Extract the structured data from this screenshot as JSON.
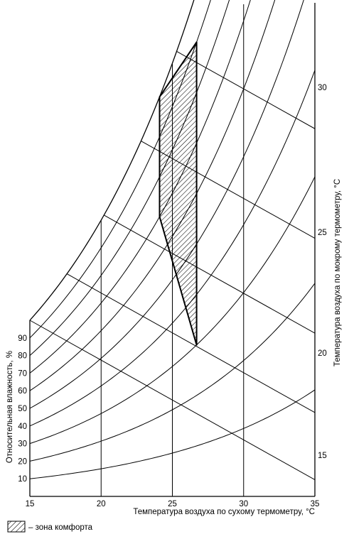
{
  "chart_data": {
    "type": "psychrometric",
    "title": "",
    "xlabel": "Температура воздуха по сухому термометру, °C",
    "ylabel_left": "Относительная влажность, %",
    "ylabel_right": "Температура воздуха по мокрому термометру, °C",
    "xlim": [
      15,
      35
    ],
    "x_ticks": [
      "15",
      "20",
      "25",
      "30",
      "35"
    ],
    "rh_curves": [
      10,
      20,
      30,
      40,
      50,
      60,
      70,
      80,
      90,
      100
    ],
    "rh_labels": [
      "90",
      "80",
      "70",
      "60",
      "50",
      "40",
      "30",
      "20",
      "10"
    ],
    "wet_bulb_labels": [
      "30",
      "25",
      "20",
      "15"
    ],
    "comfort_zone_polygon": [
      [
        24.1,
        100
      ],
      [
        26.7,
        90
      ],
      [
        26.7,
        30
      ],
      [
        24.1,
        70
      ]
    ],
    "legend": {
      "label": "– зона комфорта"
    }
  }
}
